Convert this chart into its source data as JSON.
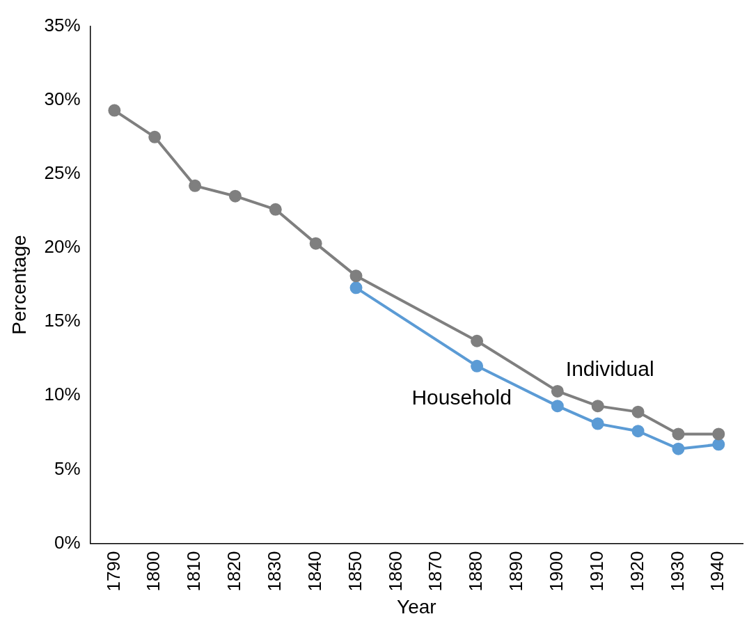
{
  "chart_data": {
    "type": "line",
    "xlabel": "Year",
    "ylabel": "Percentage",
    "xlim": [
      1784,
      1946
    ],
    "xticks": [
      1790,
      1800,
      1810,
      1820,
      1830,
      1840,
      1850,
      1860,
      1870,
      1880,
      1890,
      1900,
      1910,
      1920,
      1930,
      1940
    ],
    "ylim": [
      0,
      35
    ],
    "yticks": [
      {
        "value": 0,
        "label": "0%"
      },
      {
        "value": 5,
        "label": "5%"
      },
      {
        "value": 10,
        "label": "10%"
      },
      {
        "value": 15,
        "label": "15%"
      },
      {
        "value": 20,
        "label": "20%"
      },
      {
        "value": 25,
        "label": "25%"
      },
      {
        "value": 30,
        "label": "30%"
      },
      {
        "value": 35,
        "label": "35%"
      }
    ],
    "grid": false,
    "legend": false,
    "marker": "circle",
    "line_style": "solid",
    "series": [
      {
        "name": "Individual",
        "color": "#7f7f7f",
        "x": [
          1790,
          1800,
          1810,
          1820,
          1830,
          1840,
          1850,
          1880,
          1900,
          1910,
          1920,
          1930,
          1940
        ],
        "values": [
          29.3,
          27.5,
          24.2,
          23.5,
          22.6,
          20.3,
          18.1,
          13.7,
          10.3,
          9.3,
          8.9,
          7.4,
          7.4
        ]
      },
      {
        "name": "Household",
        "color": "#5b9bd5",
        "x": [
          1850,
          1880,
          1900,
          1910,
          1920,
          1930,
          1940
        ],
        "values": [
          17.3,
          12.0,
          9.3,
          8.1,
          7.6,
          6.4,
          6.7
        ]
      }
    ]
  }
}
